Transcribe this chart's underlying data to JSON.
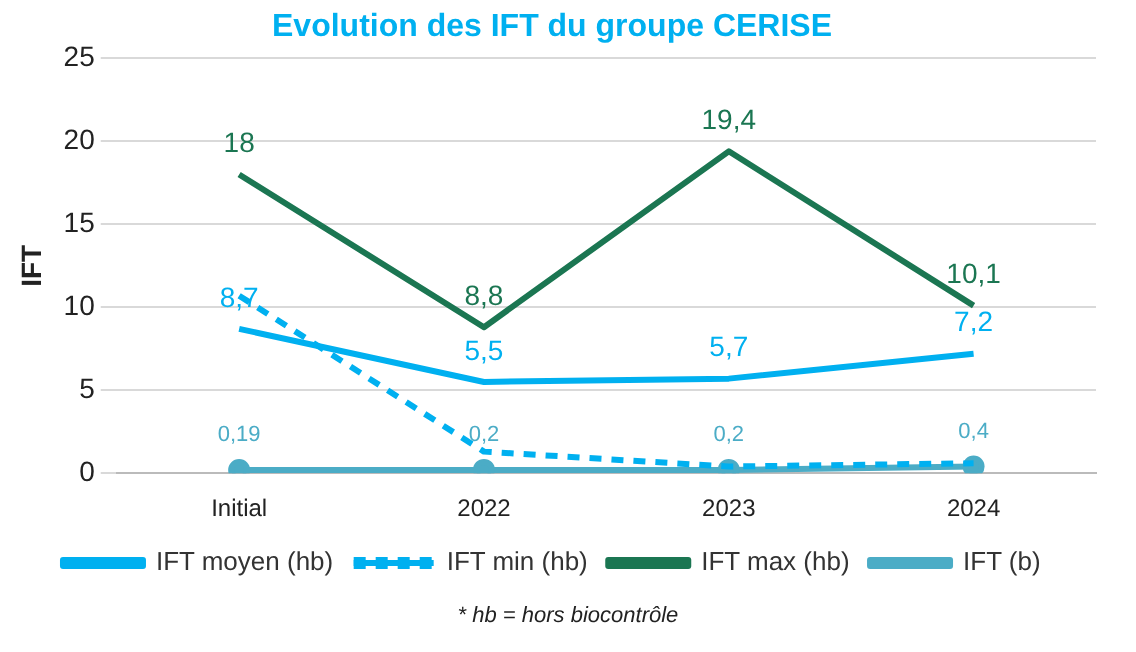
{
  "chart_data": {
    "type": "line",
    "title": "Evolution des IFT du groupe CERISE",
    "ylabel": "IFT",
    "categories": [
      "Initial",
      "2022",
      "2023",
      "2024"
    ],
    "series": [
      {
        "name": "IFT moyen (hb)",
        "color": "#00b0f0",
        "values": [
          8.7,
          5.5,
          5.7,
          7.2
        ],
        "value_labels": [
          "8,7",
          "5,5",
          "5,7",
          "7,2"
        ],
        "marker": "none",
        "line_style": "solid"
      },
      {
        "name": "IFT min (hb)",
        "color": "#00b0f0",
        "values": [
          10.7,
          1.3,
          0.4,
          0.6
        ],
        "marker": "none",
        "line_style": "dashed"
      },
      {
        "name": "IFT max (hb)",
        "color": "#1b7652",
        "values": [
          18,
          8.8,
          19.4,
          10.1
        ],
        "value_labels": [
          "18",
          "8,8",
          "19,4",
          "10,1"
        ],
        "marker": "none",
        "line_style": "solid"
      },
      {
        "name": "IFT (b)",
        "color": "#4bacc6",
        "values": [
          0.19,
          0.2,
          0.2,
          0.4
        ],
        "value_labels": [
          "0,19",
          "0,2",
          "0,2",
          "0,4"
        ],
        "marker": "circle",
        "line_style": "solid"
      }
    ],
    "ylim": [
      0,
      25
    ],
    "yticks": [
      0,
      5,
      10,
      15,
      20,
      25
    ],
    "grid": "y",
    "legend": "bottom",
    "annotations": [
      "* hb = hors biocontrôle"
    ]
  }
}
